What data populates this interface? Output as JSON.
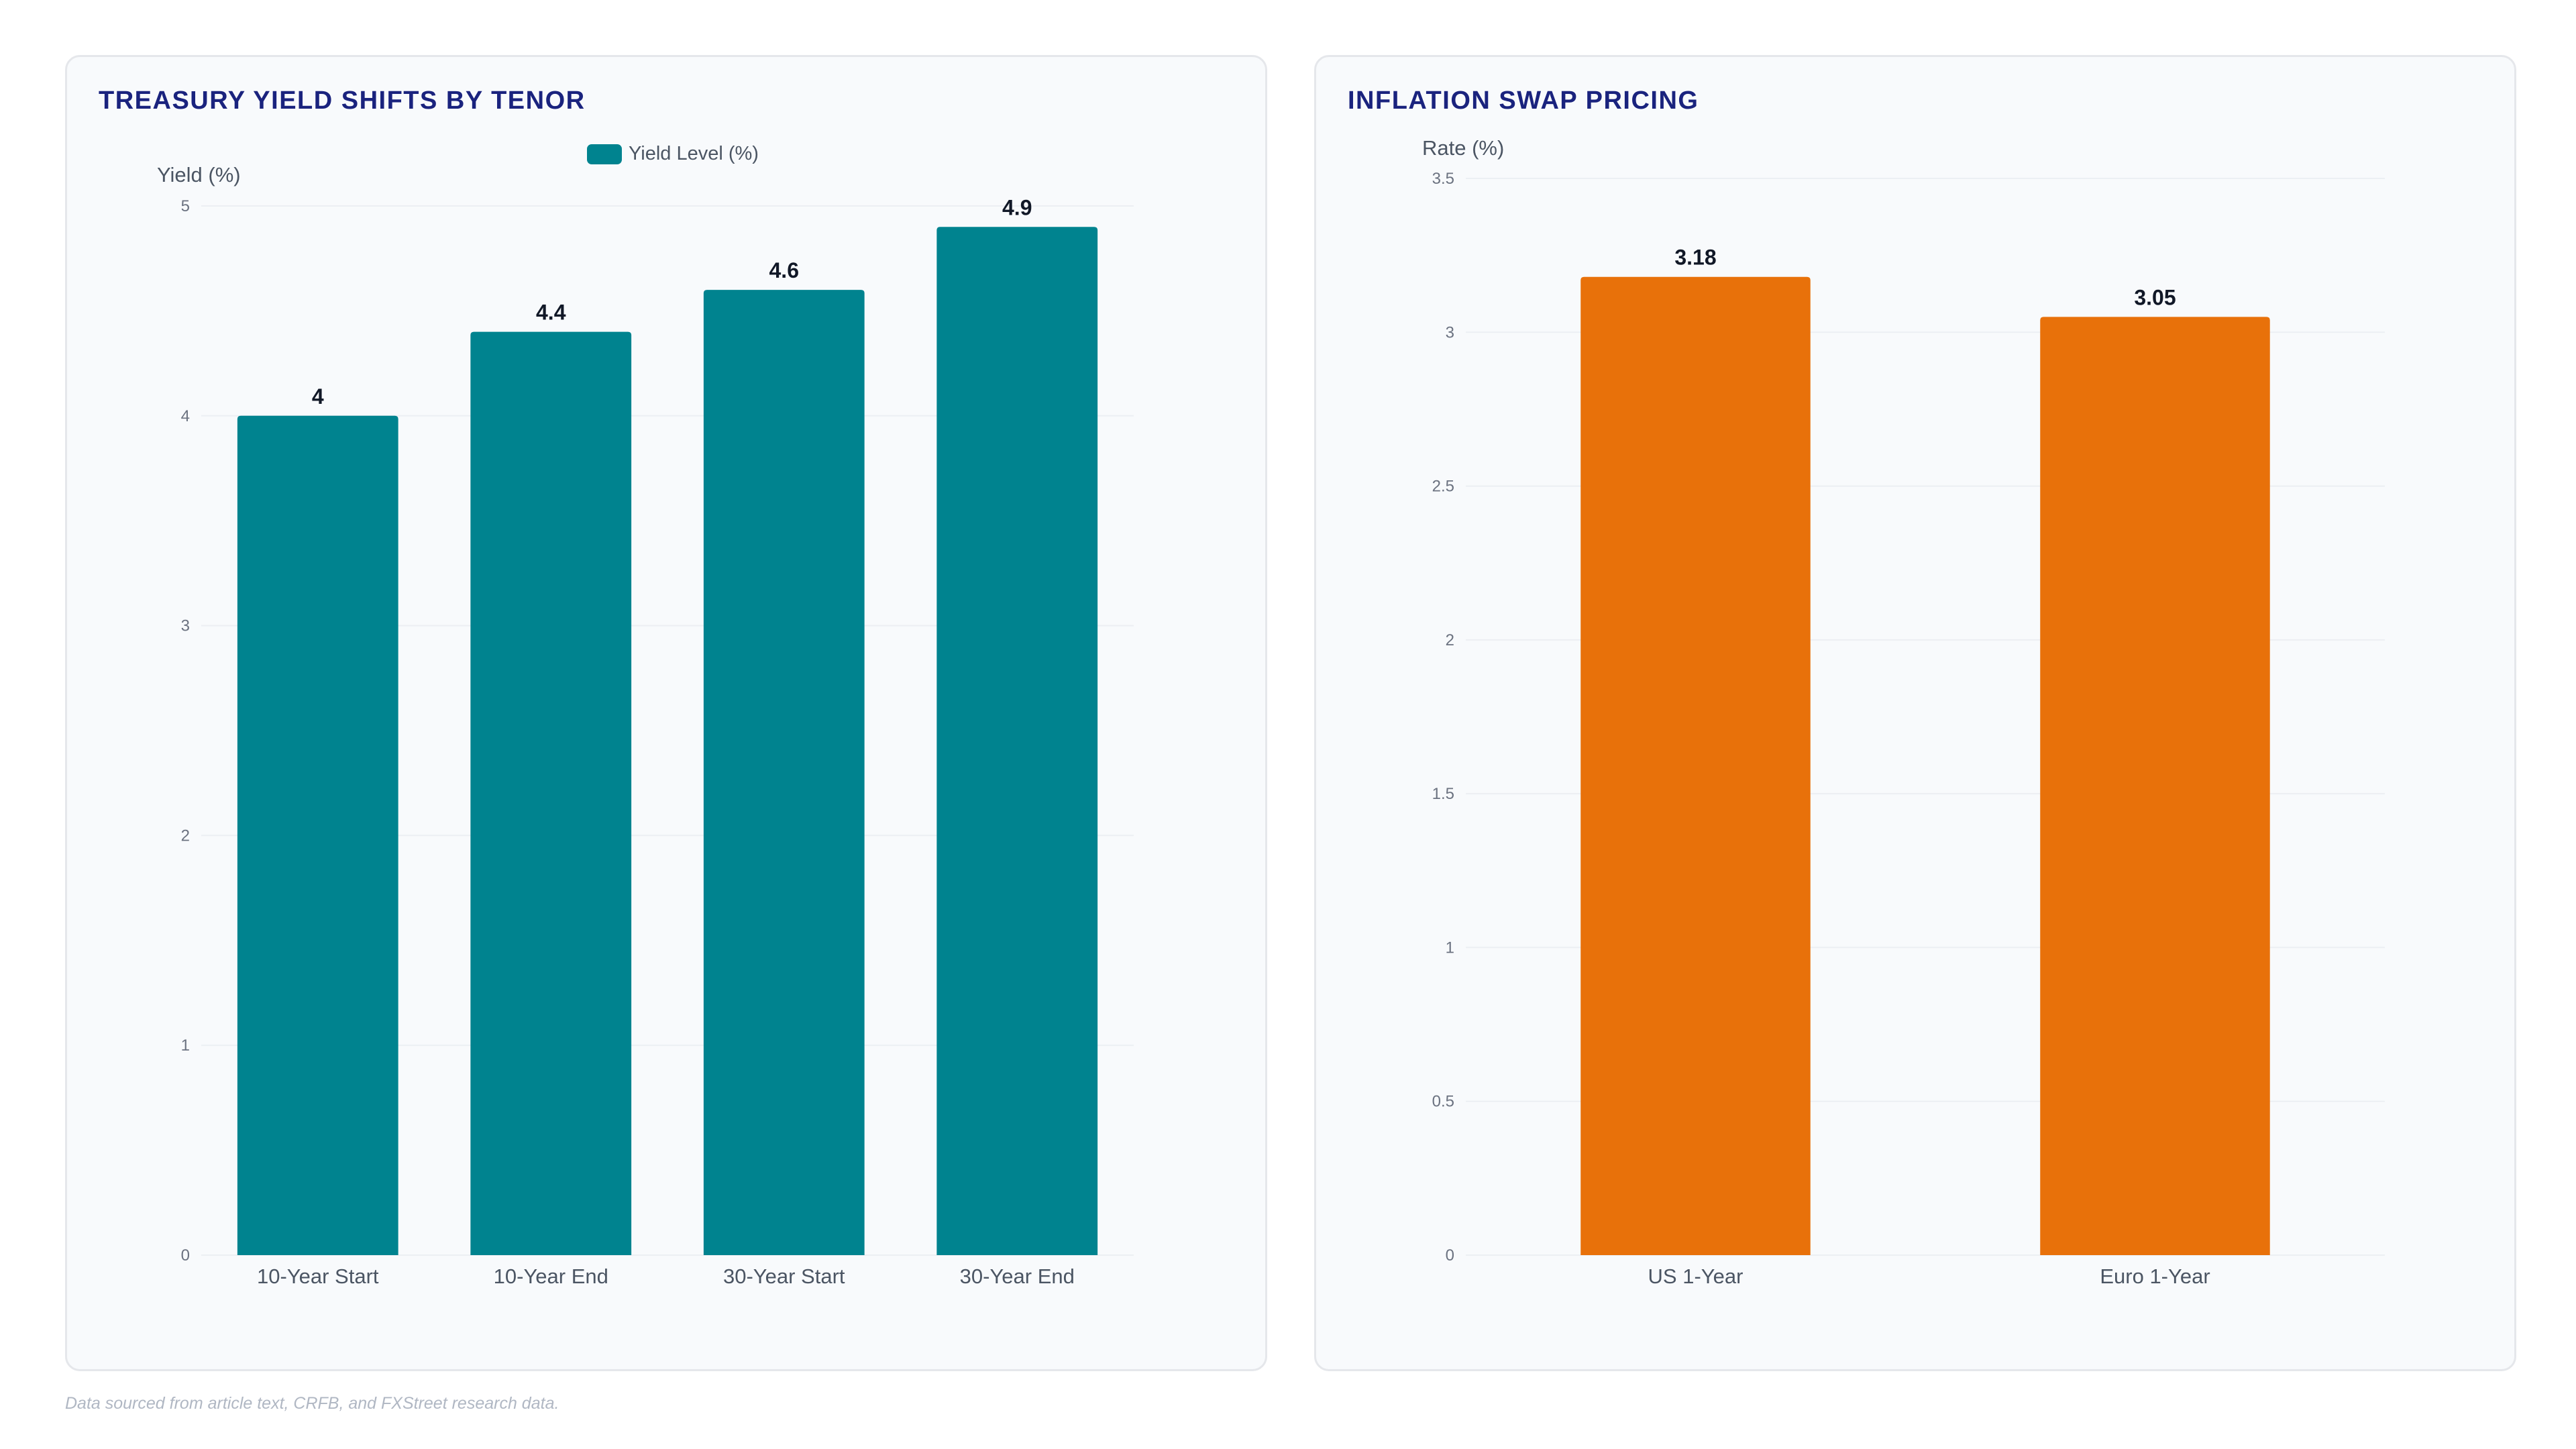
{
  "colors": {
    "teal": "#00838f",
    "orange": "#e8710a",
    "grid": "#eceff3",
    "tick": "#6b7280",
    "axis_label": "#4b5563",
    "value_label": "#111827"
  },
  "chart_data": [
    {
      "type": "bar",
      "title": "TREASURY YIELD SHIFTS BY TENOR",
      "ylabel": "Yield (%)",
      "xlabel": "",
      "categories": [
        "10-Year Start",
        "10-Year End",
        "30-Year Start",
        "30-Year End"
      ],
      "series": [
        {
          "name": "Yield Level (%)",
          "values": [
            4,
            4.4,
            4.6,
            4.9
          ],
          "color": "#00838f"
        }
      ],
      "ylim": [
        0,
        5
      ],
      "yticks": [
        0,
        1,
        2,
        3,
        4,
        5
      ],
      "legend": "top-center",
      "grid": true
    },
    {
      "type": "bar",
      "title": "INFLATION SWAP PRICING",
      "ylabel": "Rate (%)",
      "xlabel": "",
      "categories": [
        "US 1-Year",
        "Euro 1-Year"
      ],
      "series": [
        {
          "values": [
            3.18,
            3.05
          ],
          "color": "#e8710a"
        }
      ],
      "ylim": [
        0,
        3.5
      ],
      "yticks": [
        0,
        0.5,
        1,
        1.5,
        2,
        2.5,
        3,
        3.5
      ],
      "legend": "none",
      "grid": true
    }
  ],
  "footer": {
    "note": "Data sourced from article text, CRFB, and FXStreet research data."
  }
}
